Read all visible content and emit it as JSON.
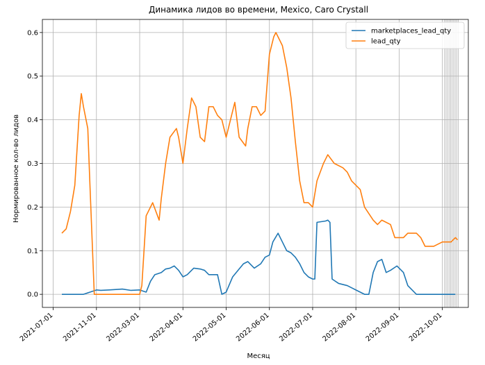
{
  "chart_data": {
    "type": "line",
    "title": "Динамика лидов во времени, Mexico, Caro Crystall",
    "xlabel": "Месяц",
    "ylabel": "Нормированное кол-во лидов",
    "ylim": [
      -0.03,
      0.63
    ],
    "y_ticks": [
      0.0,
      0.1,
      0.2,
      0.3,
      0.4,
      0.5,
      0.6
    ],
    "y_tick_labels": [
      "0.0",
      "0.1",
      "0.2",
      "0.3",
      "0.4",
      "0.5",
      "0.6"
    ],
    "x_ticks": [
      0,
      1,
      2,
      3,
      4,
      5,
      6,
      7,
      8,
      9
    ],
    "x_tick_labels": [
      "2021-07-01",
      "2021-11-01",
      "2022-03-01",
      "2022-04-01",
      "2022-05-01",
      "2022-06-01",
      "2022-07-01",
      "2022-08-01",
      "2022-09-01",
      "2022-10-01"
    ],
    "xlim": [
      -0.25,
      9.6
    ],
    "grid": true,
    "legend_position": "top-right",
    "colors": {
      "marketplaces_lead_qty": "#1f77b4",
      "lead_qty": "#ff7f0e"
    },
    "series": [
      {
        "name": "marketplaces_lead_qty",
        "x": [
          0.2,
          0.35,
          0.5,
          0.7,
          0.85,
          1.0,
          1.1,
          1.3,
          1.6,
          1.8,
          2.0,
          2.15,
          2.25,
          2.35,
          2.5,
          2.6,
          2.7,
          2.8,
          2.9,
          3.0,
          3.1,
          3.25,
          3.4,
          3.5,
          3.6,
          3.8,
          3.9,
          4.0,
          4.15,
          4.3,
          4.4,
          4.5,
          4.65,
          4.8,
          4.9,
          5.0,
          5.08,
          5.2,
          5.3,
          5.4,
          5.5,
          5.6,
          5.7,
          5.8,
          5.9,
          6.0,
          6.05,
          6.1,
          6.3,
          6.35,
          6.4,
          6.45,
          6.6,
          6.8,
          7.0,
          7.2,
          7.3,
          7.4,
          7.5,
          7.6,
          7.7,
          7.8,
          7.95,
          8.1,
          8.2,
          8.4,
          8.6,
          8.8,
          9.0,
          9.2,
          9.3
        ],
        "values": [
          0.0,
          0.0,
          0.0,
          0.0,
          0.005,
          0.01,
          0.009,
          0.01,
          0.012,
          0.009,
          0.01,
          0.005,
          0.03,
          0.045,
          0.05,
          0.058,
          0.06,
          0.065,
          0.055,
          0.04,
          0.045,
          0.06,
          0.058,
          0.055,
          0.045,
          0.045,
          0.0,
          0.005,
          0.04,
          0.058,
          0.07,
          0.075,
          0.06,
          0.07,
          0.085,
          0.09,
          0.12,
          0.14,
          0.12,
          0.1,
          0.095,
          0.085,
          0.07,
          0.05,
          0.04,
          0.035,
          0.035,
          0.165,
          0.168,
          0.17,
          0.165,
          0.035,
          0.025,
          0.02,
          0.01,
          0.0,
          0.0,
          0.05,
          0.075,
          0.08,
          0.05,
          0.055,
          0.065,
          0.05,
          0.02,
          0.0,
          0.0,
          0.0,
          0.0,
          0.0,
          0.0
        ],
        "color": "#1f77b4"
      },
      {
        "name": "lead_qty",
        "x": [
          0.2,
          0.3,
          0.4,
          0.5,
          0.6,
          0.65,
          0.7,
          0.8,
          0.85,
          0.95,
          1.1,
          1.3,
          1.6,
          1.8,
          1.95,
          2.0,
          2.05,
          2.15,
          2.3,
          2.45,
          2.5,
          2.6,
          2.7,
          2.85,
          2.9,
          3.0,
          3.1,
          3.2,
          3.3,
          3.4,
          3.5,
          3.6,
          3.7,
          3.8,
          3.9,
          4.0,
          4.1,
          4.2,
          4.3,
          4.45,
          4.5,
          4.6,
          4.7,
          4.8,
          4.9,
          5.0,
          5.1,
          5.15,
          5.2,
          5.3,
          5.4,
          5.5,
          5.6,
          5.7,
          5.8,
          5.9,
          6.0,
          6.1,
          6.25,
          6.35,
          6.5,
          6.7,
          6.8,
          6.9,
          7.0,
          7.1,
          7.2,
          7.4,
          7.5,
          7.6,
          7.8,
          7.9,
          8.1,
          8.2,
          8.4,
          8.5,
          8.6,
          8.8,
          9.0,
          9.2,
          9.3,
          9.35
        ],
        "values": [
          0.14,
          0.15,
          0.19,
          0.25,
          0.41,
          0.46,
          0.43,
          0.38,
          0.25,
          0.0,
          0.0,
          0.0,
          0.0,
          0.0,
          0.0,
          0.0,
          0.02,
          0.18,
          0.21,
          0.17,
          0.22,
          0.3,
          0.36,
          0.38,
          0.36,
          0.3,
          0.38,
          0.45,
          0.43,
          0.36,
          0.35,
          0.43,
          0.43,
          0.41,
          0.4,
          0.36,
          0.4,
          0.44,
          0.36,
          0.34,
          0.38,
          0.43,
          0.43,
          0.41,
          0.42,
          0.55,
          0.59,
          0.6,
          0.59,
          0.57,
          0.52,
          0.45,
          0.35,
          0.26,
          0.21,
          0.21,
          0.2,
          0.26,
          0.3,
          0.32,
          0.3,
          0.29,
          0.28,
          0.26,
          0.25,
          0.24,
          0.2,
          0.17,
          0.16,
          0.17,
          0.16,
          0.13,
          0.13,
          0.14,
          0.14,
          0.13,
          0.11,
          0.11,
          0.12,
          0.12,
          0.13,
          0.125
        ],
        "color": "#ff7f0e"
      }
    ]
  }
}
